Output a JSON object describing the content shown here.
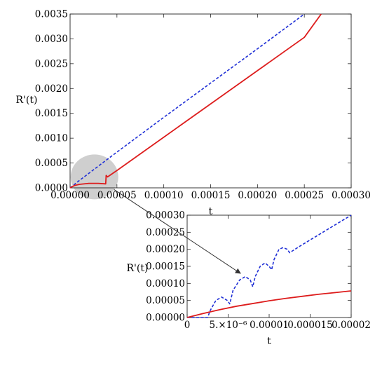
{
  "chart_data": [
    {
      "type": "line",
      "title": "",
      "xlabel": "t",
      "ylabel": "R'(t)",
      "xlim": [
        0,
        0.0003
      ],
      "ylim": [
        0,
        0.0035
      ],
      "grid": false,
      "x_ticks": [
        "0.00000",
        "0.00005",
        "0.00010",
        "0.00015",
        "0.00020",
        "0.00025",
        "0.00030"
      ],
      "x_tick_values": [
        0,
        5e-05,
        0.0001,
        0.00015,
        0.0002,
        0.00025,
        0.0003
      ],
      "y_ticks": [
        "0.0000",
        "0.0005",
        "0.0010",
        "0.0015",
        "0.0020",
        "0.0025",
        "0.0030",
        "0.0035"
      ],
      "y_tick_values": [
        0,
        0.0005,
        0.001,
        0.0015,
        0.002,
        0.0025,
        0.003,
        0.0035
      ],
      "series": [
        {
          "color": "#1f2fd6",
          "dash": "dashed",
          "x": [
            0,
            1e-05,
            5e-05,
            0.0001,
            0.00015,
            0.0002,
            0.00025
          ],
          "y": [
            0,
            0.00015,
            0.00072,
            0.00142,
            0.00211,
            0.0028,
            0.0035
          ]
        },
        {
          "color": "#dd1c1c",
          "dash": "solid",
          "x": [
            0,
            5e-06,
            1e-05,
            2e-05,
            3e-05,
            3.8e-05,
            3.85e-05,
            4e-05,
            5e-05,
            0.0001,
            0.00015,
            0.0002,
            0.00025,
            0.000268
          ],
          "y": [
            0,
            5e-05,
            7e-05,
            9e-05,
            9e-05,
            8e-05,
            0.00025,
            0.00022,
            0.00035,
            0.00102,
            0.00169,
            0.00236,
            0.00303,
            0.0035
          ]
        }
      ],
      "highlight_region": {
        "center_x": 2.6e-05,
        "center_y": 0.00022,
        "fill": "#cfcfcf"
      }
    },
    {
      "type": "line",
      "title": "",
      "xlabel": "t",
      "ylabel": "R'(t)",
      "xlim": [
        0,
        2e-05
      ],
      "ylim": [
        0,
        0.0003
      ],
      "grid": false,
      "x_ticks": [
        "0",
        "5.×10⁻⁶",
        "0.00001",
        "0.000015",
        "0.00002"
      ],
      "x_tick_values": [
        0,
        5e-06,
        1e-05,
        1.5e-05,
        2e-05
      ],
      "y_ticks": [
        "0.00000",
        "0.00005",
        "0.00010",
        "0.00015",
        "0.00020",
        "0.00025",
        "0.00030"
      ],
      "y_tick_values": [
        0,
        5e-05,
        0.0001,
        0.00015,
        0.0002,
        0.00025,
        0.0003
      ],
      "series": [
        {
          "color": "#1f2fd6",
          "dash": "dashed",
          "x": [
            0,
            2.5e-06,
            2.8e-06,
            3.5e-06,
            4.2e-06,
            4.9e-06,
            5.2e-06,
            5.6e-06,
            6.4e-06,
            7.1e-06,
            7.7e-06,
            8e-06,
            8.3e-06,
            8.9e-06,
            9.5e-06,
            1e-05,
            1.03e-05,
            1.06e-05,
            1.12e-05,
            1.17e-05,
            1.22e-05,
            1.25e-05,
            1.38e-05,
            2e-05
          ],
          "y": [
            0,
            0,
            2e-05,
            5e-05,
            6e-05,
            5e-05,
            4e-05,
            8e-05,
            0.00011,
            0.00012,
            0.00011,
            9e-05,
            0.00012,
            0.00015,
            0.00016,
            0.00015,
            0.00014,
            0.00017,
            0.0002,
            0.000205,
            0.0002,
            0.00019,
            0.00021,
            0.0003
          ]
        },
        {
          "color": "#dd1c1c",
          "dash": "solid",
          "x": [
            0,
            2e-06,
            4e-06,
            6e-06,
            8e-06,
            1e-05,
            1.2e-05,
            1.4e-05,
            1.6e-05,
            1.8e-05,
            2e-05
          ],
          "y": [
            0,
            1.2e-05,
            2.3e-05,
            3.3e-05,
            4.1e-05,
            4.9e-05,
            5.6e-05,
            6.2e-05,
            6.8e-05,
            7.3e-05,
            7.8e-05
          ]
        }
      ]
    }
  ]
}
